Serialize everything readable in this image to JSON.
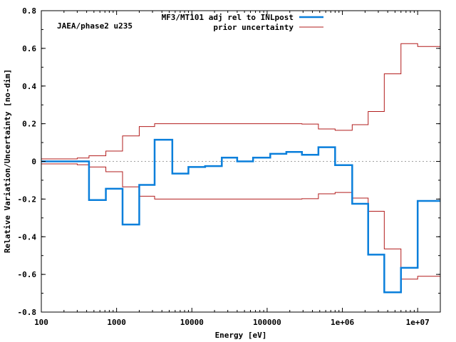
{
  "chart_data": {
    "type": "line",
    "title": "",
    "annotation": "JAEA/phase2 u235",
    "xlabel": "Energy [eV]",
    "ylabel": "Relative Variation/Uncertainty [no-dim]",
    "xscale": "log",
    "xlim": [
      100,
      20000000
    ],
    "ylim": [
      -0.8,
      0.8
    ],
    "x_ticks": [
      {
        "value": 100,
        "label": "100"
      },
      {
        "value": 1000,
        "label": "1000"
      },
      {
        "value": 10000,
        "label": "10000"
      },
      {
        "value": 100000,
        "label": "100000"
      },
      {
        "value": 1000000,
        "label": "1e+06"
      },
      {
        "value": 10000000,
        "label": "1e+07"
      }
    ],
    "y_ticks": [
      {
        "value": 0.8,
        "label": "0.8"
      },
      {
        "value": 0.6,
        "label": "0.6"
      },
      {
        "value": 0.4,
        "label": "0.4"
      },
      {
        "value": 0.2,
        "label": "0.2"
      },
      {
        "value": 0,
        "label": "0"
      },
      {
        "value": -0.2,
        "label": "-0.2"
      },
      {
        "value": -0.4,
        "label": "-0.4"
      },
      {
        "value": -0.6,
        "label": "-0.6"
      },
      {
        "value": -0.8,
        "label": "-0.8"
      }
    ],
    "zero_line": true,
    "legend_position": "top-right",
    "bin_edges": [
      100,
      300,
      430,
      720,
      1200,
      2000,
      3200,
      5500,
      9000,
      15000,
      25000,
      40000,
      65000,
      110000,
      180000,
      290000,
      480000,
      800000,
      1350000,
      2200000,
      3600000,
      6000000,
      10000000,
      20000000
    ],
    "series": [
      {
        "name": "MF3/MT101 adj rel to INLpost",
        "color": "#0a7fdb",
        "style": "step",
        "values": [
          0.0,
          0.0,
          -0.205,
          -0.145,
          -0.335,
          -0.125,
          0.115,
          -0.065,
          -0.03,
          -0.025,
          0.02,
          0.0,
          0.02,
          0.04,
          0.05,
          0.035,
          0.075,
          -0.02,
          -0.225,
          -0.495,
          -0.695,
          -0.565,
          -0.21
        ]
      },
      {
        "name": "prior uncertainty",
        "color": "#b21c1c",
        "style": "step-symmetric",
        "values": [
          0.013,
          0.018,
          0.03,
          0.055,
          0.135,
          0.185,
          0.2,
          0.2,
          0.2,
          0.2,
          0.2,
          0.2,
          0.2,
          0.2,
          0.2,
          0.198,
          0.172,
          0.165,
          0.195,
          0.265,
          0.465,
          0.625,
          0.61
        ]
      }
    ]
  }
}
